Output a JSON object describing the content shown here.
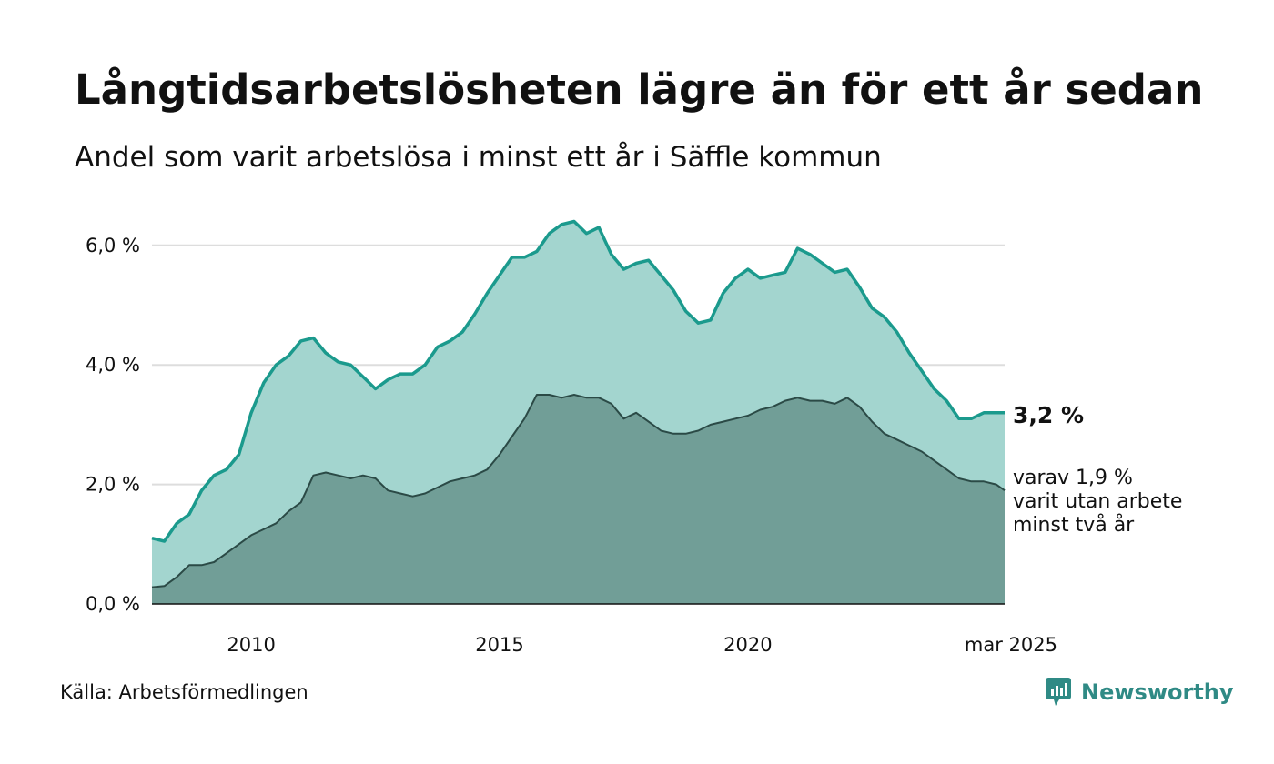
{
  "title": "Långtidsarbetslösheten lägre än för ett år sedan",
  "subtitle": "Andel som varit arbetslösa i minst ett år i Säffle kommun",
  "source": "Källa: Arbetsförmedlingen",
  "brand": "Newsworthy",
  "colors": {
    "total_fill": "#a3d5cf",
    "total_line": "#1b9a8d",
    "two_year_fill": "#719e97",
    "two_year_line": "#2b4a46",
    "grid": "#dddddd",
    "brand": "#2f8a85"
  },
  "annotations": {
    "total_value": "3,2 %",
    "two_year_line1": "varav 1,9 %",
    "two_year_line2": "varit utan arbete",
    "two_year_line3": "minst två år"
  },
  "chart_data": {
    "type": "area",
    "ylim": [
      0,
      6.6
    ],
    "y_ticks": [
      "0,0 %",
      "2,0 %",
      "4,0 %",
      "6,0 %"
    ],
    "x_ticks": [
      "2010",
      "2015",
      "2020",
      "mar 2025"
    ],
    "x_tick_years": [
      2010,
      2015,
      2020,
      2025.17
    ],
    "grid": true,
    "series": [
      {
        "key": "total",
        "x": [
          2008.0,
          2008.25,
          2008.5,
          2008.75,
          2009.0,
          2009.25,
          2009.5,
          2009.75,
          2010.0,
          2010.25,
          2010.5,
          2010.75,
          2011.0,
          2011.25,
          2011.5,
          2011.75,
          2012.0,
          2012.25,
          2012.5,
          2012.75,
          2013.0,
          2013.25,
          2013.5,
          2013.75,
          2014.0,
          2014.25,
          2014.5,
          2014.75,
          2015.0,
          2015.25,
          2015.5,
          2015.75,
          2016.0,
          2016.25,
          2016.5,
          2016.75,
          2017.0,
          2017.25,
          2017.5,
          2017.75,
          2018.0,
          2018.25,
          2018.5,
          2018.75,
          2019.0,
          2019.25,
          2019.5,
          2019.75,
          2020.0,
          2020.25,
          2020.5,
          2020.75,
          2021.0,
          2021.25,
          2021.5,
          2021.75,
          2022.0,
          2022.25,
          2022.5,
          2022.75,
          2023.0,
          2023.25,
          2023.5,
          2023.75,
          2024.0,
          2024.25,
          2024.5,
          2024.75,
          2025.0,
          2025.17
        ],
        "values": [
          1.1,
          1.05,
          1.35,
          1.5,
          1.9,
          2.15,
          2.25,
          2.5,
          3.2,
          3.7,
          4.0,
          4.15,
          4.4,
          4.45,
          4.2,
          4.05,
          4.0,
          3.8,
          3.6,
          3.75,
          3.85,
          3.85,
          4.0,
          4.3,
          4.4,
          4.55,
          4.85,
          5.2,
          5.5,
          5.8,
          5.8,
          5.9,
          6.2,
          6.35,
          6.4,
          6.2,
          6.3,
          5.85,
          5.6,
          5.7,
          5.75,
          5.5,
          5.25,
          4.9,
          4.7,
          4.75,
          5.2,
          5.45,
          5.6,
          5.45,
          5.5,
          5.55,
          5.95,
          5.85,
          5.7,
          5.55,
          5.6,
          5.3,
          4.95,
          4.8,
          4.55,
          4.2,
          3.9,
          3.6,
          3.4,
          3.1,
          3.1,
          3.2,
          3.2,
          3.2
        ]
      },
      {
        "key": "two_year",
        "x": [
          2008.0,
          2008.25,
          2008.5,
          2008.75,
          2009.0,
          2009.25,
          2009.5,
          2009.75,
          2010.0,
          2010.25,
          2010.5,
          2010.75,
          2011.0,
          2011.25,
          2011.5,
          2011.75,
          2012.0,
          2012.25,
          2012.5,
          2012.75,
          2013.0,
          2013.25,
          2013.5,
          2013.75,
          2014.0,
          2014.25,
          2014.5,
          2014.75,
          2015.0,
          2015.25,
          2015.5,
          2015.75,
          2016.0,
          2016.25,
          2016.5,
          2016.75,
          2017.0,
          2017.25,
          2017.5,
          2017.75,
          2018.0,
          2018.25,
          2018.5,
          2018.75,
          2019.0,
          2019.25,
          2019.5,
          2019.75,
          2020.0,
          2020.25,
          2020.5,
          2020.75,
          2021.0,
          2021.25,
          2021.5,
          2021.75,
          2022.0,
          2022.25,
          2022.5,
          2022.75,
          2023.0,
          2023.25,
          2023.5,
          2023.75,
          2024.0,
          2024.25,
          2024.5,
          2024.75,
          2025.0,
          2025.17
        ],
        "values": [
          0.28,
          0.3,
          0.45,
          0.65,
          0.65,
          0.7,
          0.85,
          1.0,
          1.15,
          1.25,
          1.35,
          1.55,
          1.7,
          2.15,
          2.2,
          2.15,
          2.1,
          2.15,
          2.1,
          1.9,
          1.85,
          1.8,
          1.85,
          1.95,
          2.05,
          2.1,
          2.15,
          2.25,
          2.5,
          2.8,
          3.1,
          3.5,
          3.5,
          3.45,
          3.5,
          3.45,
          3.45,
          3.35,
          3.1,
          3.2,
          3.05,
          2.9,
          2.85,
          2.85,
          2.9,
          3.0,
          3.05,
          3.1,
          3.15,
          3.25,
          3.3,
          3.4,
          3.45,
          3.4,
          3.4,
          3.35,
          3.45,
          3.3,
          3.05,
          2.85,
          2.75,
          2.65,
          2.55,
          2.4,
          2.25,
          2.1,
          2.05,
          2.05,
          2.0,
          1.9
        ]
      }
    ]
  }
}
